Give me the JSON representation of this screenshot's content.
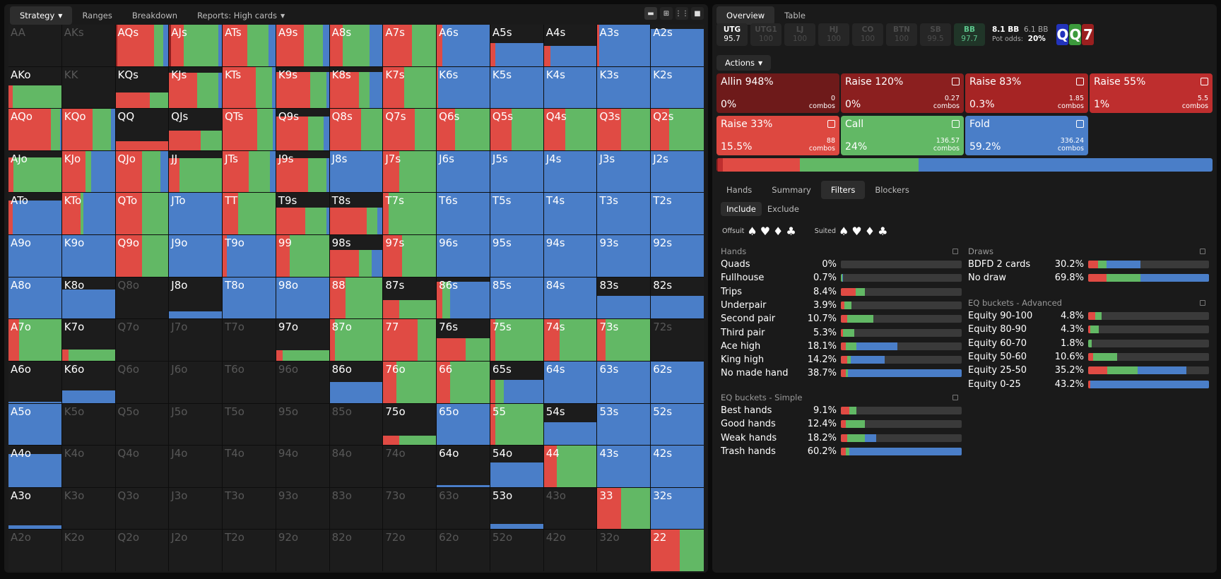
{
  "left_tabs": [
    "Strategy",
    "Ranges",
    "Breakdown",
    "Reports: High cards"
  ],
  "view_icons": [
    "single-view-icon",
    "quad-view-icon",
    "grid-view-icon",
    "full-view-icon"
  ],
  "grid": [
    [
      "AA:d",
      "AKs:d",
      "AQs:D3R70G17B10",
      "AJs:D3R25G65B7",
      "ATs:R47G40B13",
      "A9s:R53G36B11",
      "A8s:R25G50B25",
      "A7s:R55G45",
      "A6s:R10B90",
      "A5s:R10B90:55",
      "A4s:R12B88:48",
      "A3s:R3B97",
      "A2s:B100:90"
    ],
    [
      "AKo:R8G92:55",
      "KK:d",
      "KQs:R65G35:38",
      "KJs:R53G40B7:85",
      "KTs:R63G30B7",
      "K9s:R65G30B5:88",
      "K8s:R55G20B25:88",
      "K7s:R40G60",
      "K6s:R3B97",
      "K5s:B100",
      "K4s:B100",
      "K3s:B100",
      "K2s:B100"
    ],
    [
      "AQo:R80G17B3",
      "KQo:R58G35B7",
      "QQ:R100:22",
      "QJs:R60G40:48",
      "QTs:R65G30B5",
      "Q9s:R60G30B10:82",
      "Q8s:R60G40",
      "Q7s:R60G40",
      "Q6s:R35G65",
      "Q5s:R40G60",
      "Q4s:R40G60",
      "Q3s:R45G55",
      "Q2s:R35G65"
    ],
    [
      "AJo:R10G90:85",
      "KJo:R45G10B45",
      "QJo:R50G35B15",
      "JJ:R20G80:82",
      "JTs:R50G40B10",
      "J9s:R60G35B5:82",
      "J8s:B100",
      "J7s:R30G70",
      "J6s:B100",
      "J5s:B100",
      "J4s:B100",
      "J3s:B100",
      "J2s:B100"
    ],
    [
      "ATo:R8B92:82",
      "KTo:R35G5B60",
      "QTo:R50G50",
      "JTo:B100",
      "TT:R30G70",
      "T9s:R55G40B5:65",
      "T8s:R70G20B10:65",
      "T7s:R10G90",
      "T6s:B100",
      "T5s:B100",
      "T4s:B100",
      "T3s:B100",
      "T2s:B100"
    ],
    [
      "A9o:B100",
      "K9o:B100",
      "Q9o:R50G50",
      "J9o:B100",
      "T9o:R8B92",
      "99:R25G75",
      "98s:R55G25B20:65",
      "97s:R35G65",
      "96s:B100",
      "95s:B100",
      "94s:B100",
      "93s:B100",
      "92s:B100"
    ],
    [
      "A8o:B100",
      "K8o:B100:70",
      "Q8o:d",
      "J8o:B100:18",
      "T8o:B100",
      "98o:B100",
      "88:R30G70",
      "87s:R30G70:45",
      "86s:R10G15B75:90",
      "85s:B100",
      "84s:B100",
      "83s:B100:55",
      "82s:B100:55"
    ],
    [
      "A7o:R20G80",
      "K7o:R12G88:28",
      "Q7o:d",
      "J7o:d",
      "T7o:d",
      "97o:R12G88:25",
      "87o:R10G90",
      "77:R65G35",
      "76s:R55G45:55",
      "75s:R10G90",
      "74s:R30G70",
      "73s:R15G85",
      "72s:d"
    ],
    [
      "A6o:B100:3",
      "K6o:B100:30",
      "Q6o:d",
      "J6o:d",
      "T6o:d",
      "96o:d",
      "86o:B100:50",
      "76o:R25G75",
      "66:R25G75",
      "65s:R10G15B75:55",
      "64s:B100",
      "63s:B100",
      "62s:B100"
    ],
    [
      "A5o:B100",
      "K5o:d",
      "Q5o:d",
      "J5o:d",
      "T5o:d",
      "95o:d",
      "85o:d",
      "75o:R30G70:22",
      "65o:B100",
      "55:R10G90",
      "54s:B100:55",
      "53s:B100",
      "52s:B100"
    ],
    [
      "A4o:B100:80",
      "K4o:d",
      "Q4o:d",
      "J4o:d",
      "T4o:d",
      "94o:d",
      "84o:d",
      "74o:d",
      "64o:B100:5",
      "54o:B100:60",
      "44:R25G75",
      "43s:B100",
      "42s:B100"
    ],
    [
      "A3o:B100:10",
      "K3o:d",
      "Q3o:d",
      "J3o:d",
      "T3o:d",
      "93o:d",
      "83o:d",
      "73o:d",
      "63o:d",
      "53o:B100:12",
      "43o:d",
      "33:R45G55",
      "32s:B100"
    ],
    [
      "A2o:d",
      "K2o:d",
      "Q2o:d",
      "J2o:d",
      "T2o:d",
      "92o:d",
      "82o:d",
      "72o:d",
      "62o:d",
      "52o:d",
      "42o:d",
      "32o:d",
      "22:R55G45"
    ]
  ],
  "right_tabs": [
    "Overview",
    "Table"
  ],
  "players": [
    {
      "name": "UTG",
      "stack": "95.7",
      "state": "on"
    },
    {
      "name": "UTG1",
      "stack": "100",
      "state": "off"
    },
    {
      "name": "LJ",
      "stack": "100",
      "state": "off"
    },
    {
      "name": "HJ",
      "stack": "100",
      "state": "off"
    },
    {
      "name": "CO",
      "stack": "100",
      "state": "off"
    },
    {
      "name": "BTN",
      "stack": "100",
      "state": "off"
    },
    {
      "name": "SB",
      "stack": "99.5",
      "state": "off"
    },
    {
      "name": "BB",
      "stack": "97.7",
      "state": "bb"
    }
  ],
  "pot": {
    "bb1": "8.1 BB",
    "bb2": "6.1 BB",
    "odds_label": "Pot odds:",
    "odds": "20%"
  },
  "board": [
    {
      "rank": "Q",
      "color": "#2233bb"
    },
    {
      "rank": "Q",
      "color": "#3c9a3c"
    },
    {
      "rank": "7",
      "color": "#9a1f1f"
    }
  ],
  "actions_label": "Actions",
  "actions": [
    {
      "name": "Allin 948%",
      "pct": "0%",
      "combos": "0",
      "color": "#6e1a1a",
      "icon": false
    },
    {
      "name": "Raise 120%",
      "pct": "0%",
      "combos": "0.27",
      "color": "#8b1f1f",
      "icon": true
    },
    {
      "name": "Raise 83%",
      "pct": "0.3%",
      "combos": "1.85",
      "color": "#a62424",
      "icon": true
    },
    {
      "name": "Raise 55%",
      "pct": "1%",
      "combos": "5.5",
      "color": "#be2e2e",
      "icon": true
    },
    {
      "name": "Raise 33%",
      "pct": "15.5%",
      "combos": "88",
      "color": "#dd4840",
      "icon": true
    },
    {
      "name": "Call",
      "pct": "24%",
      "combos": "136.57",
      "color": "#62b865",
      "icon": true
    },
    {
      "name": "Fold",
      "pct": "59.2%",
      "combos": "336.24",
      "color": "#4a7ec8",
      "icon": true
    }
  ],
  "combos_word": "combos",
  "sub_tabs": [
    "Hands",
    "Summary",
    "Filters",
    "Blockers"
  ],
  "incl_tabs": [
    "Include",
    "Exclude"
  ],
  "suits": {
    "offsuit": "Offsuit",
    "suited": "Suited",
    "glyphs": [
      "♠",
      "♥",
      "♦",
      "♣"
    ]
  },
  "hands": {
    "title": "Hands",
    "rows": [
      {
        "label": "Quads",
        "pct": "0%",
        "bar": [
          0,
          0,
          0
        ]
      },
      {
        "label": "Fullhouse",
        "pct": "0.7%",
        "bar": [
          0,
          1,
          1
        ]
      },
      {
        "label": "Trips",
        "pct": "8.4%",
        "bar": [
          12,
          8,
          0
        ]
      },
      {
        "label": "Underpair",
        "pct": "3.9%",
        "bar": [
          3,
          6,
          0
        ]
      },
      {
        "label": "Second pair",
        "pct": "10.7%",
        "bar": [
          5,
          22,
          0
        ]
      },
      {
        "label": "Third pair",
        "pct": "5.3%",
        "bar": [
          2,
          9,
          0
        ]
      },
      {
        "label": "Ace high",
        "pct": "18.1%",
        "bar": [
          4,
          9,
          34
        ]
      },
      {
        "label": "King high",
        "pct": "14.2%",
        "bar": [
          5,
          3,
          28
        ]
      },
      {
        "label": "No made hand",
        "pct": "38.7%",
        "bar": [
          4,
          2,
          94
        ]
      }
    ]
  },
  "eq_simple": {
    "title": "EQ buckets - Simple",
    "rows": [
      {
        "label": "Best hands",
        "pct": "9.1%",
        "bar": [
          7,
          6,
          0
        ]
      },
      {
        "label": "Good hands",
        "pct": "12.4%",
        "bar": [
          4,
          16,
          0
        ]
      },
      {
        "label": "Weak hands",
        "pct": "18.2%",
        "bar": [
          5,
          15,
          9
        ]
      },
      {
        "label": "Trash hands",
        "pct": "60.2%",
        "bar": [
          4,
          3,
          93
        ]
      }
    ]
  },
  "draws": {
    "title": "Draws",
    "rows": [
      {
        "label": "BDFD 2 cards",
        "pct": "30.2%",
        "bar": [
          8,
          7,
          28
        ]
      },
      {
        "label": "No draw",
        "pct": "69.8%",
        "bar": [
          15,
          28,
          57
        ]
      }
    ]
  },
  "eq_adv": {
    "title": "EQ buckets - Advanced",
    "rows": [
      {
        "label": "Equity 90-100",
        "pct": "4.8%",
        "bar": [
          6,
          5,
          0
        ]
      },
      {
        "label": "Equity 80-90",
        "pct": "4.3%",
        "bar": [
          2,
          7,
          0
        ]
      },
      {
        "label": "Equity 60-70",
        "pct": "1.8%",
        "bar": [
          0,
          3,
          0
        ]
      },
      {
        "label": "Equity 50-60",
        "pct": "10.6%",
        "bar": [
          4,
          20,
          0
        ]
      },
      {
        "label": "Equity 25-50",
        "pct": "35.2%",
        "bar": [
          16,
          25,
          40
        ]
      },
      {
        "label": "Equity 0-25",
        "pct": "43.2%",
        "bar": [
          2,
          0,
          98
        ]
      }
    ]
  }
}
